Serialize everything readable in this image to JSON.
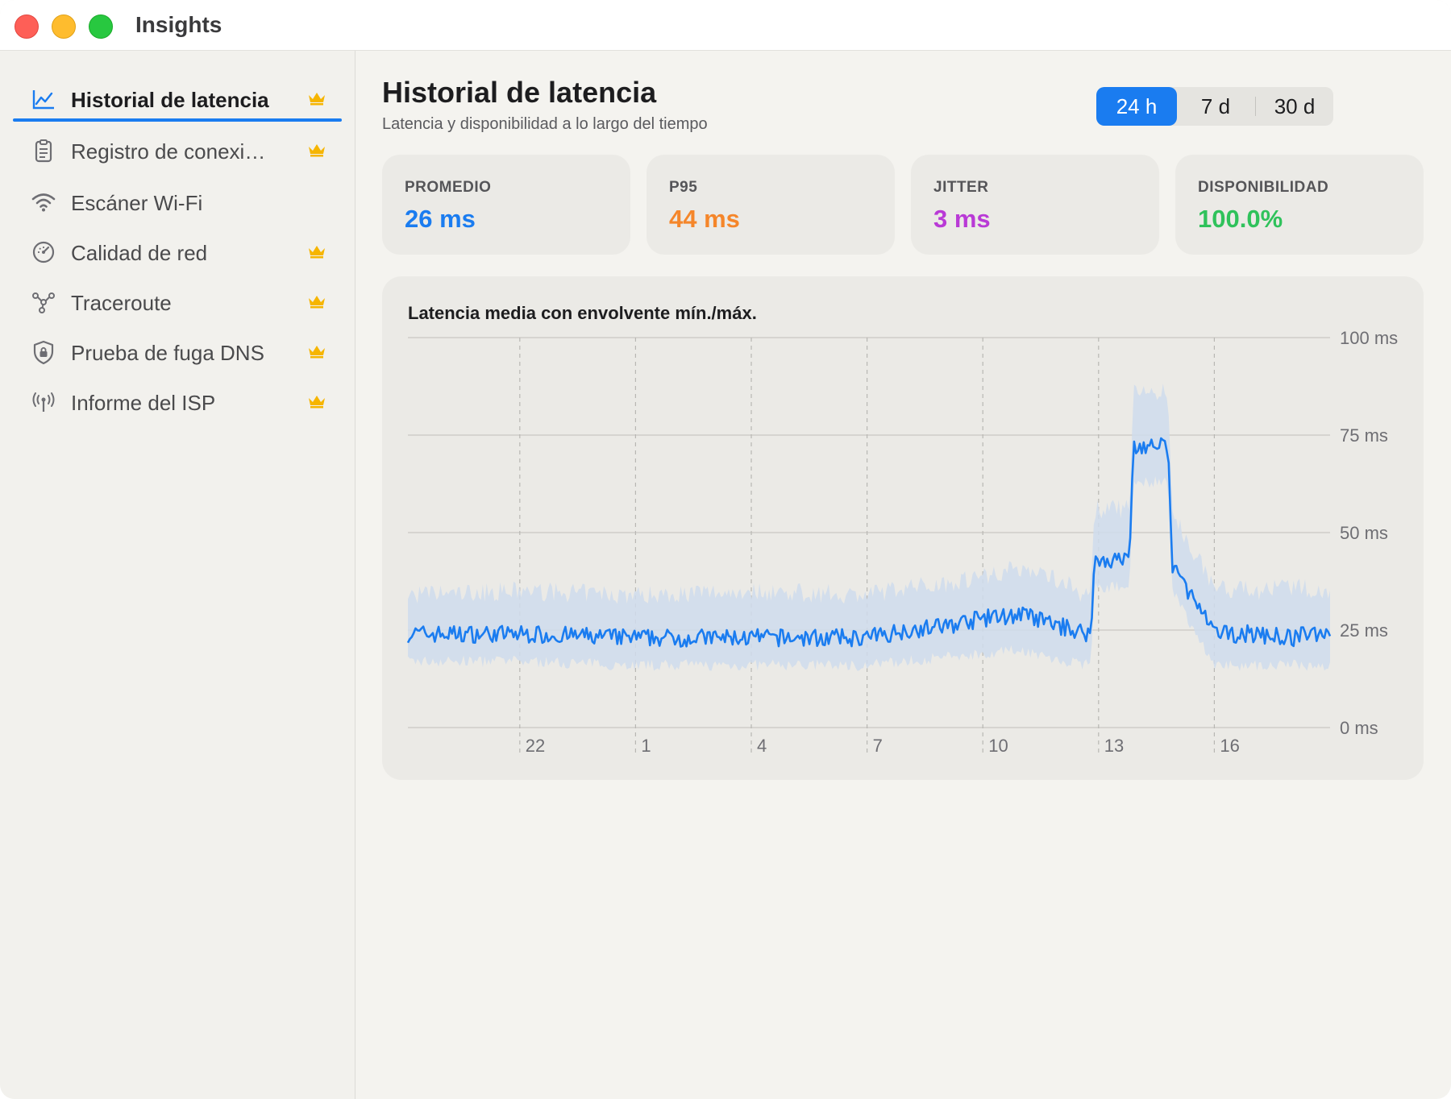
{
  "window": {
    "title": "Insights"
  },
  "sidebar": {
    "items": [
      {
        "label": "Historial de latencia",
        "icon": "line-chart-icon",
        "premium": true,
        "active": true
      },
      {
        "label": "Registro de conexi…",
        "icon": "clipboard-icon",
        "premium": true,
        "active": false
      },
      {
        "label": "Escáner Wi-Fi",
        "icon": "wifi-icon",
        "premium": false,
        "active": false
      },
      {
        "label": "Calidad de red",
        "icon": "gauge-icon",
        "premium": true,
        "active": false
      },
      {
        "label": "Traceroute",
        "icon": "route-icon",
        "premium": true,
        "active": false
      },
      {
        "label": "Prueba de fuga DNS",
        "icon": "shield-lock-icon",
        "premium": true,
        "active": false
      },
      {
        "label": "Informe del ISP",
        "icon": "antenna-icon",
        "premium": true,
        "active": false
      }
    ]
  },
  "header": {
    "title": "Historial de latencia",
    "subtitle": "Latencia y disponibilidad a lo largo del tiempo"
  },
  "range": {
    "options": [
      "24 h",
      "7 d",
      "30 d"
    ],
    "selected": "24 h"
  },
  "stats": [
    {
      "label": "PROMEDIO",
      "value": "26 ms",
      "color": "#1a7cf0"
    },
    {
      "label": "P95",
      "value": "44 ms",
      "color": "#f5862a"
    },
    {
      "label": "JITTER",
      "value": "3 ms",
      "color": "#b93ad6"
    },
    {
      "label": "DISPONIBILIDAD",
      "value": "100.0%",
      "color": "#2fc25b"
    }
  ],
  "colors": {
    "accent": "#1a7cf0",
    "envelope": "#cfdcec",
    "premium_crown": "#f6b500"
  },
  "chart_data": {
    "type": "line",
    "title": "Latencia media con envolvente mín./máx.",
    "x_ticks": [
      "22",
      "1",
      "4",
      "7",
      "10",
      "13",
      "16"
    ],
    "x_tick_hours": [
      22,
      25,
      28,
      31,
      34,
      37,
      40
    ],
    "x_range_hours": [
      19.1,
      43.0
    ],
    "y_ticks": [
      "0 ms",
      "25 ms",
      "50 ms",
      "75 ms",
      "100 ms"
    ],
    "y_tick_values": [
      0,
      25,
      50,
      75,
      100
    ],
    "ylim": [
      0,
      100
    ],
    "grid": true,
    "series": [
      {
        "name": "",
        "x_hours": [
          19.1,
          22,
          25,
          28,
          31,
          32,
          33,
          34,
          35,
          36,
          36.8,
          36.9,
          37.8,
          37.9,
          38.8,
          38.9,
          40,
          41,
          42,
          43.0
        ],
        "mean": [
          24,
          24,
          23,
          23,
          23,
          25,
          26,
          28,
          29,
          26,
          24,
          43,
          43,
          72,
          72,
          42,
          24,
          24,
          23,
          25
        ],
        "min": [
          17,
          17,
          16,
          16,
          16,
          17,
          18,
          19,
          20,
          17,
          16,
          36,
          36,
          63,
          63,
          35,
          16,
          16,
          16,
          16
        ],
        "max": [
          33,
          34,
          33,
          34,
          33,
          35,
          36,
          38,
          40,
          37,
          32,
          55,
          55,
          85,
          85,
          54,
          35,
          34,
          35,
          34
        ]
      }
    ]
  }
}
